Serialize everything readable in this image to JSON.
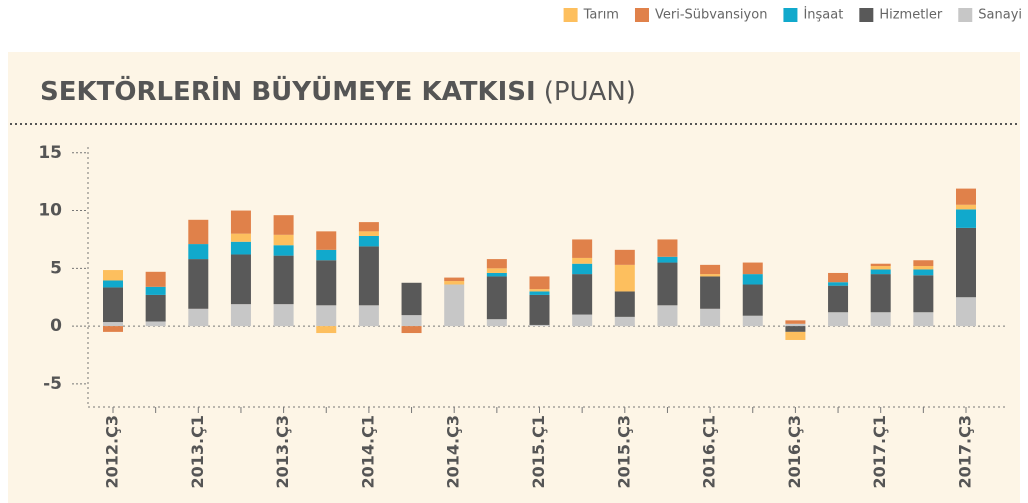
{
  "chart_data": {
    "type": "stacked_bar",
    "title": "SEKTÖRLERİN BÜYÜMEYE KATKISI",
    "subtitle": "(PUAN)",
    "categories": [
      "2012.Ç3",
      null,
      "2013.Ç1",
      null,
      "2013.Ç3",
      null,
      "2014.Ç1",
      null,
      "2014.Ç3",
      null,
      "2015.Ç1",
      null,
      "2015.Ç3",
      null,
      "2016.Ç1",
      null,
      "2016.Ç3",
      null,
      "2017.Ç1",
      null,
      "2017.Ç3"
    ],
    "series": [
      {
        "name": "Tarım",
        "color": "#fdbf5e",
        "values": [
          0.9,
          0,
          0,
          0.7,
          0.9,
          -0.6,
          0.4,
          0,
          0.3,
          0.4,
          0.2,
          0.5,
          2.3,
          0,
          0.2,
          0,
          -0.7,
          0,
          0.3,
          0.3,
          0.4
        ]
      },
      {
        "name": "Veri-Sübvansiyon",
        "color": "#e0814a",
        "values": [
          -0.5,
          1.3,
          2.1,
          2.0,
          1.7,
          1.6,
          0.8,
          -0.6,
          0.3,
          0.8,
          1.1,
          1.6,
          1.3,
          1.5,
          0.8,
          1.0,
          0.3,
          0.8,
          0.2,
          0.5,
          1.4
        ]
      },
      {
        "name": "İnşaat",
        "color": "#11a9cc",
        "values": [
          0.6,
          0.7,
          1.3,
          1.1,
          0.9,
          0.9,
          0.9,
          0,
          0,
          0.3,
          0.3,
          0.9,
          0,
          0.5,
          0,
          0.9,
          0,
          0.3,
          0.4,
          0.5,
          1.6
        ]
      },
      {
        "name": "Hizmetler",
        "color": "#595959",
        "values": [
          3.0,
          2.3,
          4.3,
          4.3,
          4.2,
          3.9,
          5.1,
          2.8,
          0,
          3.7,
          2.6,
          3.5,
          2.2,
          3.7,
          2.8,
          2.7,
          -0.5,
          2.3,
          3.3,
          3.2,
          6.0
        ]
      },
      {
        "name": "Sanayi",
        "color": "#c7c7c7",
        "values": [
          0.35,
          0.4,
          1.5,
          1.9,
          1.9,
          1.8,
          1.8,
          0.95,
          3.6,
          0.6,
          0.1,
          1.0,
          0.8,
          1.8,
          1.5,
          0.9,
          0.2,
          1.2,
          1.2,
          1.2,
          2.5
        ]
      }
    ],
    "ylim": [
      -7,
      15.5
    ],
    "yticks": [
      -5,
      0,
      5,
      10,
      15
    ],
    "legend": "top-right"
  }
}
